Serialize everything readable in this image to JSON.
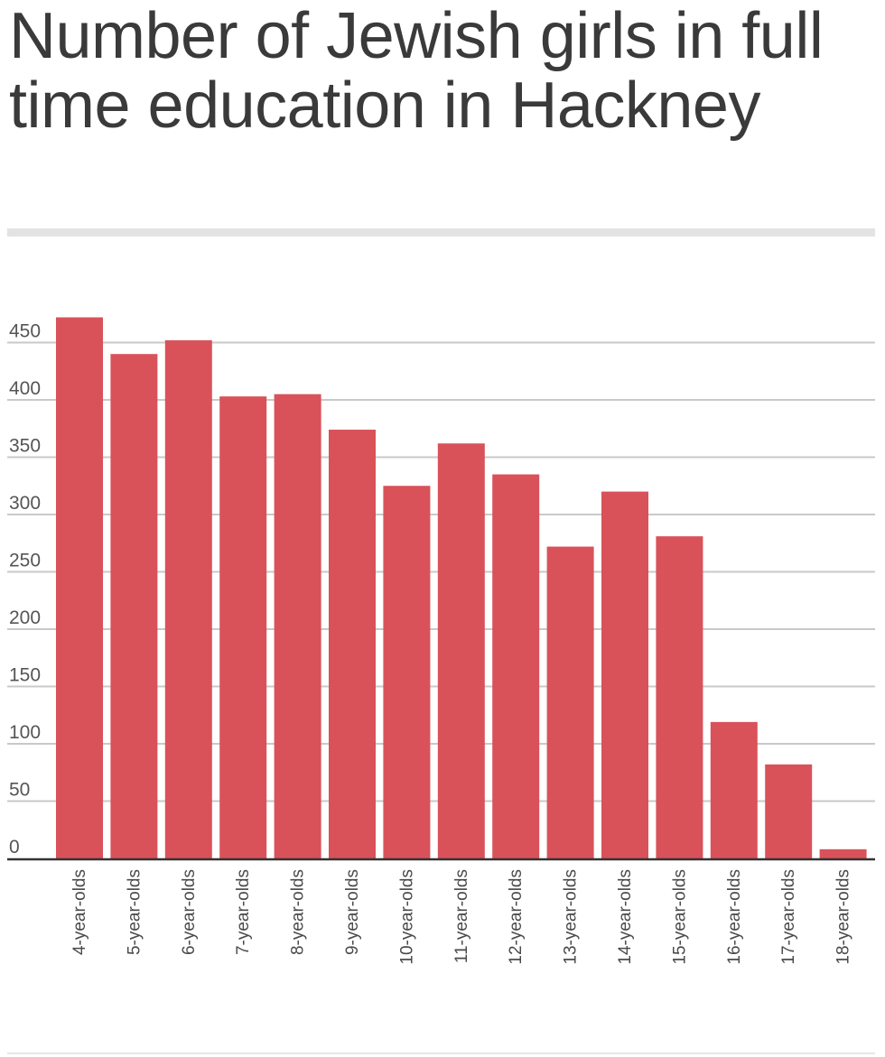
{
  "chart_data": {
    "type": "bar",
    "title": "Number of Jewish girls in full time education in Hackney",
    "categories": [
      "4-year-olds",
      "5-year-olds",
      "6-year-olds",
      "7-year-olds",
      "8-year-olds",
      "9-year-olds",
      "10-year-olds",
      "11-year-olds",
      "12-year-olds",
      "13-year-olds",
      "14-year-olds",
      "15-year-olds",
      "16-year-olds",
      "17-year-olds",
      "18-year-olds"
    ],
    "values": [
      472,
      440,
      452,
      403,
      405,
      374,
      325,
      362,
      335,
      272,
      320,
      281,
      119,
      82,
      8
    ],
    "yticks": [
      0,
      50,
      100,
      150,
      200,
      250,
      300,
      350,
      400,
      450
    ],
    "ylim": [
      0,
      472
    ],
    "xlabel": "",
    "ylabel": "",
    "grid": true,
    "bar_color": "#d9525a",
    "grid_color": "#c9c9c9",
    "axis_color": "#333333"
  }
}
